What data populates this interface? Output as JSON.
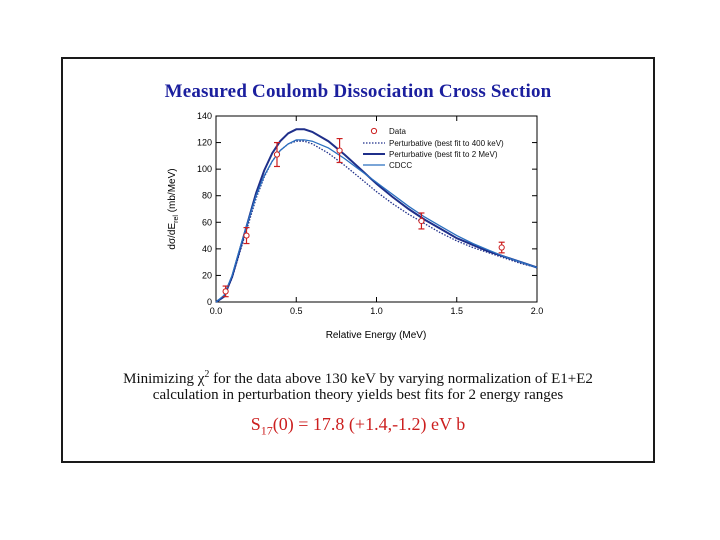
{
  "slide": {
    "title": "Measured Coulomb Dissociation Cross Section",
    "text_line1_a": "Minimizing ",
    "chi_symbol": "χ",
    "chi_exponent": "2",
    "text_line1_b": " for the data above 130 keV by varying normalization of E1+E2",
    "text_line2": "calculation in perturbation theory yields best fits for 2 energy ranges",
    "result_prefix": "S",
    "result_subscript": "17",
    "result_suffix": "(0) = 17.8 (+1.4,-1.2) eV b"
  },
  "colors": {
    "title": "#1b1f9e",
    "data": "#cc1f1f",
    "curve_dark": "#1f2f8a",
    "curve_light": "#2a6fbf",
    "result": "#cc1f1f"
  },
  "chart_data": {
    "type": "line",
    "title": "Measured Coulomb Dissociation Cross Section",
    "xlabel": "Relative Energy (MeV)",
    "ylabel": "dσ/dErel (mb/MeV)",
    "ylabel_main": "dσ/dE",
    "ylabel_sub": "rel",
    "ylabel_unit": " (mb/MeV)",
    "xlim": [
      0,
      2.0
    ],
    "ylim": [
      0,
      140
    ],
    "xticks": [
      "0.0",
      "0.5",
      "1.0",
      "1.5",
      "2.0"
    ],
    "xtick_values": [
      0,
      0.5,
      1.0,
      1.5,
      2.0
    ],
    "yticks": [
      "0",
      "20",
      "40",
      "60",
      "80",
      "100",
      "120",
      "140"
    ],
    "ytick_values": [
      0,
      20,
      40,
      60,
      80,
      100,
      120,
      140
    ],
    "legend_position": "top-right",
    "data_points": {
      "name": "Data",
      "x": [
        0.06,
        0.19,
        0.38,
        0.77,
        1.28,
        1.78
      ],
      "y": [
        8,
        50,
        111,
        114,
        61,
        41
      ],
      "err": [
        4,
        6,
        9,
        9,
        6,
        4
      ]
    },
    "series": [
      {
        "name": "Perturbative (best fit to 400 keV)",
        "style": "dotted",
        "x": [
          0.0,
          0.05,
          0.1,
          0.15,
          0.2,
          0.25,
          0.3,
          0.35,
          0.4,
          0.45,
          0.5,
          0.55,
          0.6,
          0.7,
          0.8,
          0.9,
          1.0,
          1.1,
          1.2,
          1.3,
          1.4,
          1.5,
          1.6,
          1.7,
          1.8,
          1.9,
          2.0
        ],
        "y": [
          0,
          4,
          18,
          38,
          58,
          78,
          94,
          106,
          114,
          119,
          121,
          121,
          119,
          112,
          103,
          93,
          83,
          74,
          66,
          59,
          52,
          46,
          41,
          37,
          33,
          29,
          26
        ]
      },
      {
        "name": "Perturbative (best fit to 2 MeV)",
        "style": "solid-dark",
        "x": [
          0.0,
          0.05,
          0.1,
          0.15,
          0.2,
          0.25,
          0.3,
          0.35,
          0.4,
          0.45,
          0.5,
          0.55,
          0.6,
          0.7,
          0.8,
          0.9,
          1.0,
          1.1,
          1.2,
          1.3,
          1.4,
          1.5,
          1.6,
          1.7,
          1.8,
          1.9,
          2.0
        ],
        "y": [
          0,
          4,
          19,
          40,
          61,
          82,
          99,
          112,
          121,
          127,
          130,
          130,
          128,
          121,
          111,
          100,
          89,
          79,
          70,
          62,
          55,
          48,
          43,
          38,
          34,
          30,
          26
        ]
      },
      {
        "name": "CDCC",
        "style": "solid-light",
        "x": [
          0.0,
          0.05,
          0.1,
          0.15,
          0.2,
          0.25,
          0.3,
          0.35,
          0.4,
          0.45,
          0.5,
          0.55,
          0.6,
          0.7,
          0.8,
          0.9,
          1.0,
          1.1,
          1.2,
          1.3,
          1.4,
          1.5,
          1.6,
          1.7,
          1.8,
          1.9,
          2.0
        ],
        "y": [
          0,
          5,
          20,
          41,
          61,
          80,
          95,
          106,
          114,
          119,
          122,
          122,
          121,
          116,
          108,
          99,
          90,
          81,
          72,
          64,
          57,
          50,
          44,
          39,
          34,
          30,
          26
        ]
      }
    ]
  }
}
